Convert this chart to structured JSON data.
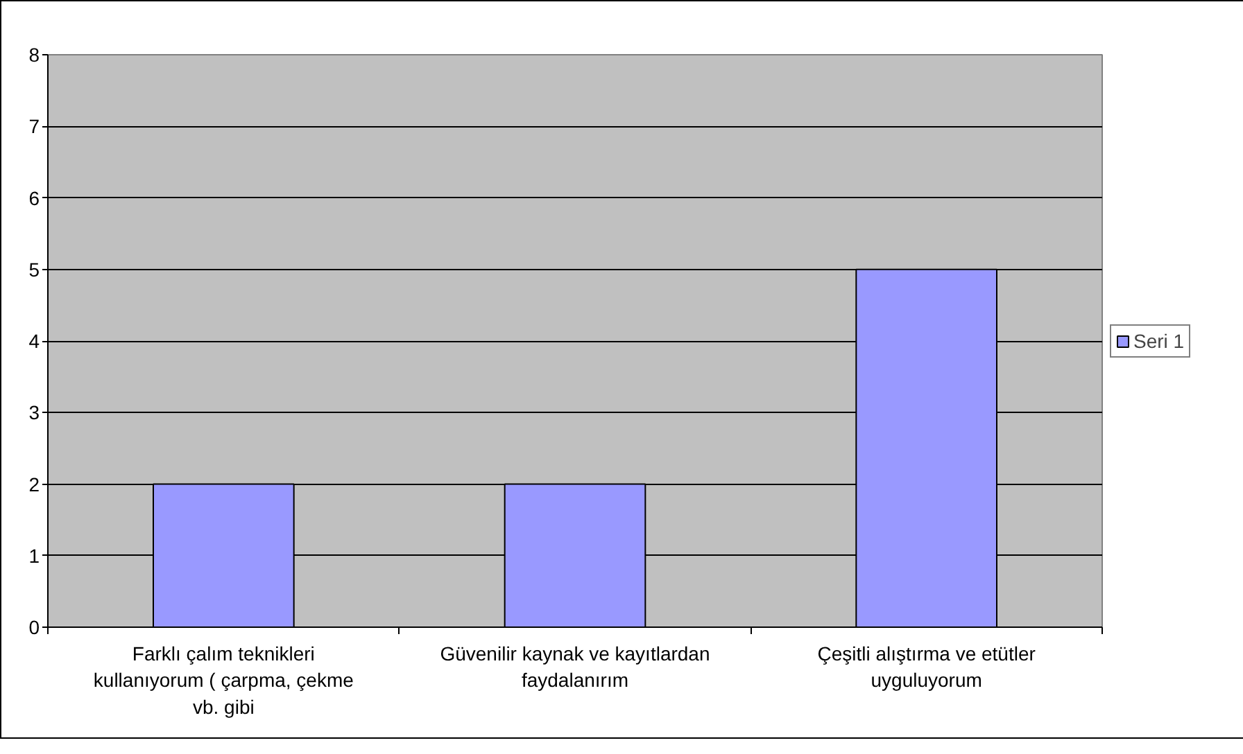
{
  "chart_data": {
    "type": "bar",
    "categories": [
      "Farklı çalım teknikleri kullanıyorum ( çarpma, çekme vb. gibi",
      "Güvenilir kaynak ve kayıtlardan faydalanırım",
      "Çeşitli alıştırma ve etütler uyguluyorum"
    ],
    "series": [
      {
        "name": "Seri 1",
        "color": "#9999ff",
        "values": [
          2,
          2,
          5
        ]
      }
    ],
    "ylim": [
      0,
      8
    ],
    "yticks": [
      0,
      1,
      2,
      3,
      4,
      5,
      6,
      7,
      8
    ],
    "grid": "y",
    "legend": "right"
  }
}
